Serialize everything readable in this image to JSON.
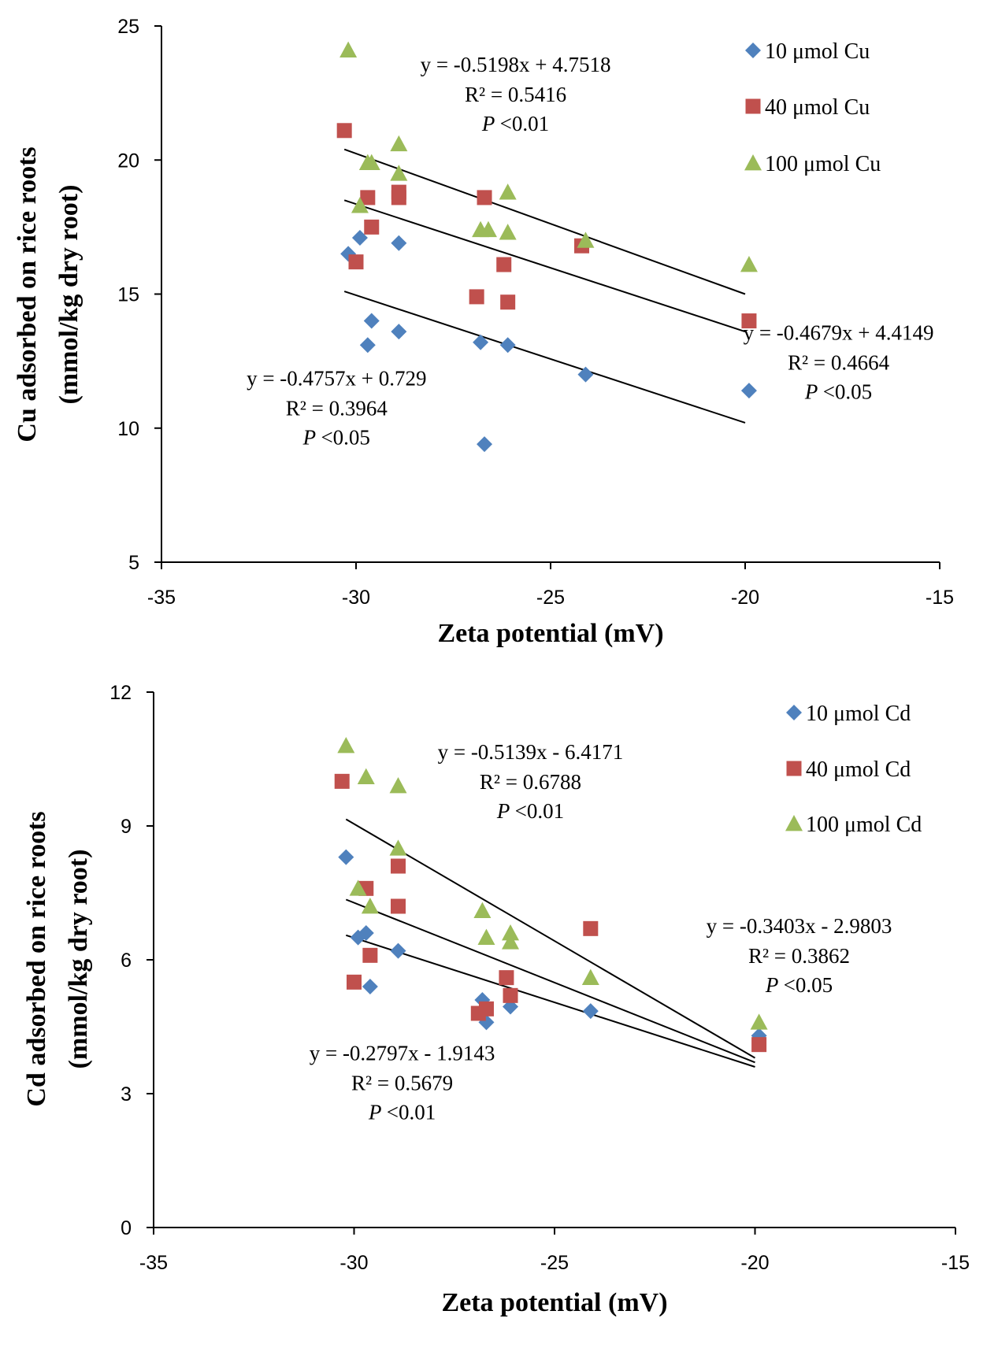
{
  "chart_data": [
    {
      "type": "scatter",
      "xlabel": "Zeta potential  (mV)",
      "ylabel_line1": "Cu adsorbed on rice roots",
      "ylabel_line2": "(mmol/kg  dry root)",
      "xlim": [
        -35,
        -15
      ],
      "ylim": [
        5,
        25
      ],
      "x_ticks": [
        -35,
        -30,
        -25,
        -20,
        -15
      ],
      "x_tick_labels": [
        "-35",
        "-30",
        "-25",
        "-20",
        "-15"
      ],
      "y_ticks": [
        5,
        10,
        15,
        20,
        25
      ],
      "y_tick_labels": [
        "5",
        "10",
        "15",
        "20",
        "25"
      ],
      "legend_position": "top-right",
      "series": [
        {
          "name": "10 μmol Cu",
          "marker": "diamond",
          "color": "#4F81BD",
          "points": [
            [
              -30.2,
              16.5
            ],
            [
              -29.9,
              17.1
            ],
            [
              -29.7,
              13.1
            ],
            [
              -29.6,
              14.0
            ],
            [
              -28.9,
              13.6
            ],
            [
              -28.9,
              16.9
            ],
            [
              -26.8,
              13.2
            ],
            [
              -26.7,
              9.4
            ],
            [
              -26.1,
              13.1
            ],
            [
              -24.1,
              12.0
            ],
            [
              -19.9,
              11.4
            ]
          ]
        },
        {
          "name": "40 μmol Cu",
          "marker": "square",
          "color": "#C0504D",
          "points": [
            [
              -30.3,
              21.1
            ],
            [
              -30.0,
              16.2
            ],
            [
              -29.7,
              18.6
            ],
            [
              -29.6,
              17.5
            ],
            [
              -28.9,
              18.6
            ],
            [
              -28.9,
              18.8
            ],
            [
              -26.7,
              18.6
            ],
            [
              -26.9,
              14.9
            ],
            [
              -26.2,
              16.1
            ],
            [
              -26.1,
              14.7
            ],
            [
              -24.2,
              16.8
            ],
            [
              -19.9,
              14.0
            ]
          ]
        },
        {
          "name": "100 μmol Cu",
          "marker": "triangle",
          "color": "#9BBB59",
          "points": [
            [
              -30.2,
              24.1
            ],
            [
              -29.9,
              18.3
            ],
            [
              -29.7,
              19.9
            ],
            [
              -29.6,
              19.9
            ],
            [
              -28.9,
              20.6
            ],
            [
              -28.9,
              19.5
            ],
            [
              -26.8,
              17.4
            ],
            [
              -26.6,
              17.4
            ],
            [
              -26.1,
              18.8
            ],
            [
              -26.1,
              17.3
            ],
            [
              -24.1,
              17.0
            ],
            [
              -19.9,
              16.1
            ]
          ]
        }
      ],
      "trendlines": [
        {
          "x1": -30.3,
          "y1": 20.4,
          "x2": -20.0,
          "y2": 15.0
        },
        {
          "x1": -30.3,
          "y1": 18.5,
          "x2": -20.0,
          "y2": 13.6
        },
        {
          "x1": -30.3,
          "y1": 15.1,
          "x2": -20.0,
          "y2": 10.2
        }
      ],
      "annotations": [
        {
          "eq": "y = -0.5198x   + 4.7518",
          "r2": "R² = 0.5416",
          "p": "<0.01",
          "ax": -25.9,
          "ay": 23.3
        },
        {
          "eq": "y = -0.4679x   + 4.4149",
          "r2": "R² = 0.4664",
          "p": "<0.05",
          "ax": -17.6,
          "ay": 13.3
        },
        {
          "eq": "y = -0.4757x   + 0.729",
          "r2": "R² = 0.3964",
          "p": "<0.05",
          "ax": -30.5,
          "ay": 11.6
        }
      ]
    },
    {
      "type": "scatter",
      "xlabel": "Zeta potential  (mV)",
      "ylabel_line1": "Cd adsorbed on rice roots",
      "ylabel_line2": "(mmol/kg  dry root)",
      "xlim": [
        -35,
        -15
      ],
      "ylim": [
        0,
        12
      ],
      "x_ticks": [
        -35,
        -30,
        -25,
        -20,
        -15
      ],
      "x_tick_labels": [
        "-35",
        "-30",
        "-25",
        "-20",
        "-15"
      ],
      "y_ticks": [
        0,
        3,
        6,
        9,
        12
      ],
      "y_tick_labels": [
        "0",
        "3",
        "6",
        "9",
        "12"
      ],
      "legend_position": "top-right",
      "series": [
        {
          "name": "10 μmol Cd",
          "marker": "diamond",
          "color": "#4F81BD",
          "points": [
            [
              -30.2,
              8.3
            ],
            [
              -29.9,
              6.5
            ],
            [
              -29.7,
              6.6
            ],
            [
              -29.6,
              5.4
            ],
            [
              -28.9,
              6.2
            ],
            [
              -26.8,
              5.1
            ],
            [
              -26.7,
              4.6
            ],
            [
              -26.1,
              4.95
            ],
            [
              -24.1,
              4.85
            ],
            [
              -19.9,
              4.3
            ]
          ]
        },
        {
          "name": "40 μmol Cd",
          "marker": "square",
          "color": "#C0504D",
          "points": [
            [
              -30.3,
              10.0
            ],
            [
              -30.0,
              5.5
            ],
            [
              -29.7,
              7.6
            ],
            [
              -29.6,
              6.1
            ],
            [
              -28.9,
              8.1
            ],
            [
              -28.9,
              7.2
            ],
            [
              -26.9,
              4.8
            ],
            [
              -26.7,
              4.9
            ],
            [
              -26.2,
              5.6
            ],
            [
              -26.1,
              5.2
            ],
            [
              -24.1,
              6.7
            ],
            [
              -19.9,
              4.1
            ]
          ]
        },
        {
          "name": "100 μmol Cd",
          "marker": "triangle",
          "color": "#9BBB59",
          "points": [
            [
              -30.2,
              10.8
            ],
            [
              -29.9,
              7.6
            ],
            [
              -29.7,
              10.1
            ],
            [
              -29.6,
              7.2
            ],
            [
              -28.9,
              9.9
            ],
            [
              -28.9,
              8.5
            ],
            [
              -26.8,
              7.1
            ],
            [
              -26.7,
              6.5
            ],
            [
              -26.1,
              6.4
            ],
            [
              -26.1,
              6.6
            ],
            [
              -24.1,
              5.6
            ],
            [
              -19.9,
              4.6
            ]
          ]
        }
      ],
      "trendlines": [
        {
          "x1": -30.2,
          "y1": 9.15,
          "x2": -20.0,
          "y2": 3.8
        },
        {
          "x1": -30.2,
          "y1": 7.35,
          "x2": -20.0,
          "y2": 3.7
        },
        {
          "x1": -30.2,
          "y1": 6.55,
          "x2": -20.0,
          "y2": 3.6
        }
      ],
      "annotations": [
        {
          "eq": "y = -0.5139x   - 6.4171",
          "r2": "R² = 0.6788",
          "p": "<0.01",
          "ax": -25.6,
          "ay": 10.5
        },
        {
          "eq": "y = -0.3403x   - 2.9803",
          "r2": "R² = 0.3862",
          "p": "<0.05",
          "ax": -18.9,
          "ay": 6.6
        },
        {
          "eq": "y = -0.2797x   - 1.9143",
          "r2": "R² = 0.5679",
          "p": "<0.01",
          "ax": -28.8,
          "ay": 3.75
        }
      ]
    }
  ]
}
